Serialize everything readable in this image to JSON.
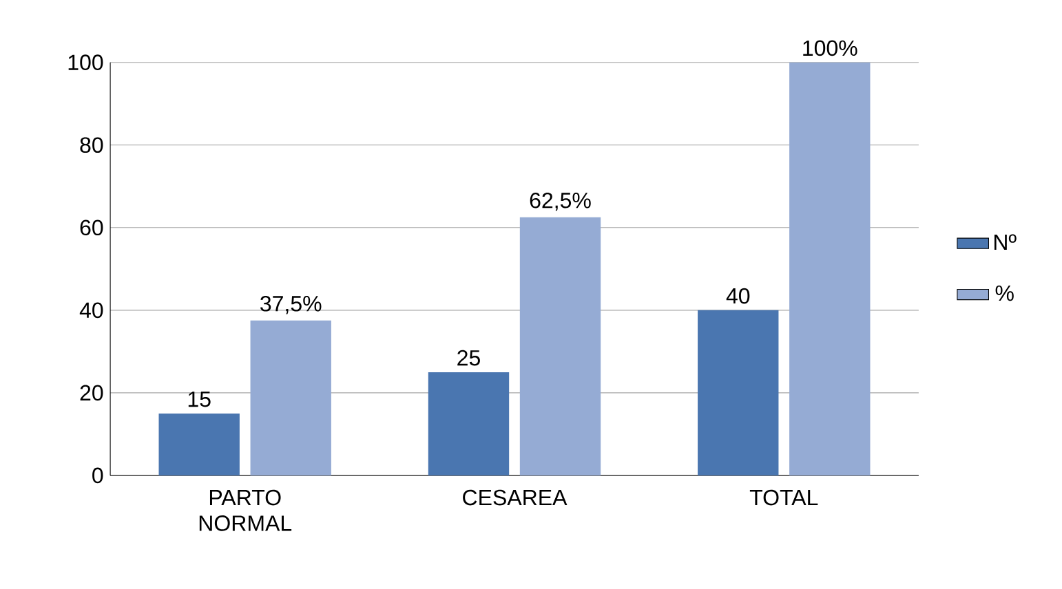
{
  "chart_data": {
    "type": "bar",
    "categories": [
      "PARTO NORMAL",
      "CESAREA",
      "TOTAL"
    ],
    "series": [
      {
        "name": "Nº",
        "color": "#4a76b0",
        "values": [
          15,
          25,
          40
        ],
        "value_labels": [
          "15",
          "25",
          "40"
        ]
      },
      {
        "name": "%",
        "color": "#95abd4",
        "values": [
          37.5,
          62.5,
          100
        ],
        "value_labels": [
          "37,5%",
          "62,5%",
          "100%"
        ]
      }
    ],
    "ylim": [
      0,
      100
    ],
    "yticks": [
      0,
      20,
      40,
      60,
      80,
      100
    ],
    "grid": "y",
    "legend": "right"
  }
}
